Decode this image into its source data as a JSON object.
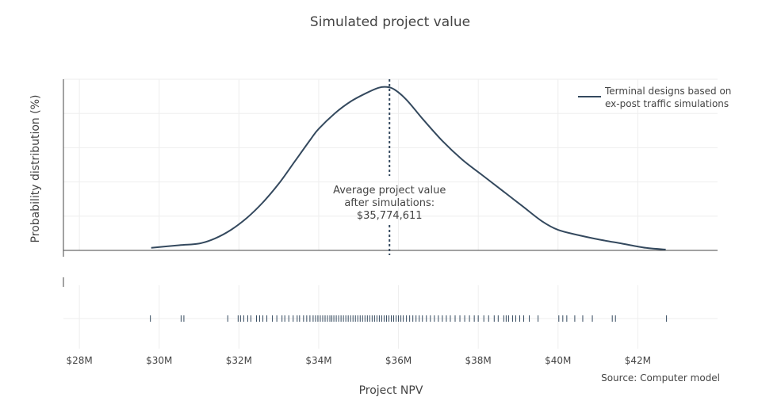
{
  "chart_data": {
    "type": "line",
    "title": "Simulated project value",
    "xlabel": "Project NPV",
    "ylabel": "Probability distribution (%)",
    "xlim": [
      27.6,
      44.0
    ],
    "x_tick_values": [
      28,
      30,
      32,
      34,
      36,
      38,
      40,
      42
    ],
    "x_tick_labels": [
      "$28M",
      "$30M",
      "$32M",
      "$34M",
      "$36M",
      "$38M",
      "$40M",
      "$42M"
    ],
    "ylim": [
      0,
      1
    ],
    "y_ticks_labeled": false,
    "grid": true,
    "legend_position": "top-right",
    "series": [
      {
        "name": "Terminal designs based on ex-post traffic simulations",
        "legend_lines": [
          "Terminal designs based on",
          "ex-post traffic simulations"
        ],
        "color": "#34495e",
        "x": [
          29.8,
          30.5,
          31.0,
          31.4,
          31.8,
          32.2,
          32.6,
          33.0,
          33.4,
          33.8,
          34.0,
          34.4,
          34.8,
          35.2,
          35.5,
          35.7,
          35.9,
          36.2,
          36.6,
          37.1,
          37.6,
          38.1,
          38.6,
          39.1,
          39.6,
          40.0,
          40.5,
          41.0,
          41.6,
          42.2,
          42.7
        ],
        "y": [
          0.015,
          0.03,
          0.04,
          0.07,
          0.12,
          0.19,
          0.28,
          0.39,
          0.52,
          0.65,
          0.71,
          0.8,
          0.87,
          0.92,
          0.95,
          0.955,
          0.94,
          0.88,
          0.77,
          0.64,
          0.53,
          0.44,
          0.35,
          0.26,
          0.17,
          0.12,
          0.09,
          0.065,
          0.04,
          0.015,
          0.005
        ]
      }
    ],
    "mean_line": {
      "x": 35.774611,
      "annotation": [
        "Average project value",
        "after simulations:",
        "$35,774,611"
      ]
    },
    "rug": {
      "color": "#34495e",
      "x": [
        29.78,
        30.55,
        30.62,
        31.72,
        31.98,
        32.04,
        32.12,
        32.22,
        32.3,
        32.44,
        32.52,
        32.6,
        32.7,
        32.84,
        32.95,
        33.08,
        33.15,
        33.25,
        33.36,
        33.46,
        33.52,
        33.62,
        33.7,
        33.78,
        33.86,
        33.92,
        33.98,
        34.04,
        34.1,
        34.16,
        34.22,
        34.28,
        34.33,
        34.38,
        34.44,
        34.5,
        34.56,
        34.62,
        34.68,
        34.74,
        34.8,
        34.86,
        34.92,
        34.98,
        35.04,
        35.1,
        35.16,
        35.22,
        35.28,
        35.34,
        35.4,
        35.46,
        35.52,
        35.58,
        35.64,
        35.7,
        35.76,
        35.82,
        35.88,
        35.94,
        36.0,
        36.06,
        36.12,
        36.2,
        36.28,
        36.36,
        36.44,
        36.52,
        36.6,
        36.7,
        36.8,
        36.9,
        37.0,
        37.1,
        37.2,
        37.3,
        37.42,
        37.54,
        37.66,
        37.78,
        37.9,
        38.0,
        38.14,
        38.26,
        38.4,
        38.5,
        38.64,
        38.7,
        38.76,
        38.86,
        38.94,
        39.04,
        39.14,
        39.28,
        39.5,
        40.02,
        40.12,
        40.22,
        40.42,
        40.62,
        40.86,
        41.36,
        41.44,
        42.72
      ]
    },
    "source": "Source: Computer model"
  }
}
